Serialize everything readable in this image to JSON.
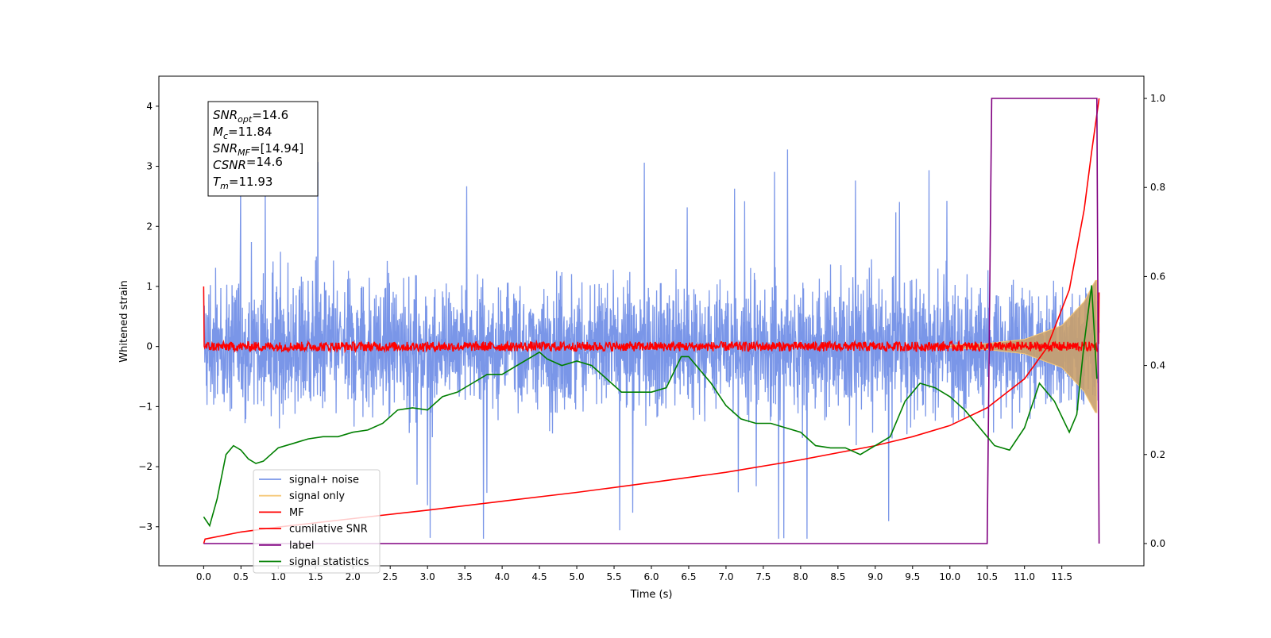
{
  "chart_data": {
    "type": "line",
    "xlabel": "Time (s)",
    "ylabel": "Whitened strain",
    "xlim": [
      -0.6,
      12.6
    ],
    "ylim": [
      -3.65,
      4.5
    ],
    "y2lim": [
      -0.05,
      1.05
    ],
    "x_ticks": [
      "0.0",
      "0.5",
      "1.0",
      "1.5",
      "2.0",
      "2.5",
      "3.0",
      "3.5",
      "4.0",
      "4.5",
      "5.0",
      "5.5",
      "6.0",
      "6.5",
      "7.0",
      "7.5",
      "8.0",
      "8.5",
      "9.0",
      "9.5",
      "10.0",
      "10.5",
      "11.0",
      "11.5"
    ],
    "y_ticks": [
      "−3",
      "−2",
      "−1",
      "0",
      "1",
      "2",
      "3",
      "4"
    ],
    "y2_ticks": [
      "0.0",
      "0.2",
      "0.4",
      "0.6",
      "0.8",
      "1.0"
    ],
    "annotation": [
      {
        "sym": "SNR",
        "sub": "opt",
        "val": "=14.6"
      },
      {
        "sym": "M",
        "sub": "c",
        "val": "=11.84"
      },
      {
        "sym": "SNR",
        "sub": "MF",
        "val": "=[14.94]"
      },
      {
        "sym": "CSNR",
        "sub": "",
        "val": "=14.6"
      },
      {
        "sym": "T",
        "sub": "m",
        "val": "=11.93"
      }
    ],
    "legend_position": "lower-left",
    "legend": [
      {
        "label": "signal+ noise",
        "color": "#7a96e8"
      },
      {
        "label": "signal only",
        "color": "#f6c97a"
      },
      {
        "label": "MF",
        "color": "#ff0000"
      },
      {
        "label": "cumilative SNR",
        "color": "#ff0000"
      },
      {
        "label": "label",
        "color": "#800080"
      },
      {
        "label": "signal statistics",
        "color": "#007f00"
      }
    ],
    "series": [
      {
        "name": "signal+ noise",
        "axis": "left",
        "color": "#7a96e8",
        "description_levels": {
          "x_start": 0.0,
          "x_end": 12.0,
          "typical_upper": 1.5,
          "typical_lower": -1.5,
          "max": 4.2,
          "min": -3.2
        }
      },
      {
        "name": "signal only",
        "axis": "left",
        "color": "#f6c97a",
        "envelope": {
          "x": [
            10.0,
            10.5,
            11.0,
            11.5,
            11.8,
            11.95
          ],
          "amp": [
            0.02,
            0.05,
            0.12,
            0.35,
            0.75,
            1.1
          ]
        }
      },
      {
        "name": "MF",
        "axis": "left",
        "color": "#ff0000",
        "x_start": 0.0,
        "x_end": 12.0,
        "start_value": 1.0,
        "typical_amp": 0.08,
        "end_value": 0.9
      },
      {
        "name": "cumilative SNR",
        "axis": "right",
        "color": "#ff0000",
        "x": [
          0.0,
          0.02,
          0.5,
          1.0,
          2.0,
          3.0,
          4.0,
          5.0,
          6.0,
          7.0,
          8.0,
          9.0,
          9.5,
          10.0,
          10.5,
          11.0,
          11.3,
          11.6,
          11.8,
          11.9,
          12.0
        ],
        "y": [
          0.0,
          0.01,
          0.026,
          0.037,
          0.056,
          0.075,
          0.095,
          0.115,
          0.137,
          0.16,
          0.188,
          0.22,
          0.24,
          0.265,
          0.305,
          0.37,
          0.44,
          0.57,
          0.75,
          0.88,
          1.0
        ]
      },
      {
        "name": "label",
        "axis": "right",
        "color": "#800080",
        "x": [
          0.0,
          10.5,
          10.56,
          11.97,
          12.0
        ],
        "y": [
          0.0,
          0.0,
          1.0,
          1.0,
          0.0
        ]
      },
      {
        "name": "signal statistics",
        "axis": "right",
        "color": "#007f00",
        "x": [
          0.0,
          0.08,
          0.18,
          0.3,
          0.4,
          0.5,
          0.6,
          0.7,
          0.8,
          0.9,
          1.0,
          1.2,
          1.4,
          1.6,
          1.8,
          2.0,
          2.2,
          2.4,
          2.6,
          2.8,
          3.0,
          3.2,
          3.4,
          3.6,
          3.8,
          4.0,
          4.2,
          4.4,
          4.5,
          4.6,
          4.8,
          5.0,
          5.2,
          5.4,
          5.6,
          5.8,
          6.0,
          6.2,
          6.4,
          6.5,
          6.6,
          6.8,
          7.0,
          7.2,
          7.4,
          7.6,
          7.8,
          8.0,
          8.2,
          8.4,
          8.6,
          8.8,
          9.0,
          9.2,
          9.4,
          9.6,
          9.8,
          10.0,
          10.2,
          10.4,
          10.6,
          10.8,
          11.0,
          11.2,
          11.4,
          11.6,
          11.7,
          11.8,
          11.9,
          11.97
        ],
        "y": [
          0.06,
          0.04,
          0.1,
          0.2,
          0.22,
          0.21,
          0.19,
          0.18,
          0.185,
          0.2,
          0.215,
          0.225,
          0.235,
          0.24,
          0.24,
          0.25,
          0.255,
          0.27,
          0.3,
          0.305,
          0.3,
          0.33,
          0.34,
          0.36,
          0.38,
          0.38,
          0.4,
          0.42,
          0.43,
          0.415,
          0.4,
          0.41,
          0.4,
          0.37,
          0.34,
          0.34,
          0.34,
          0.35,
          0.42,
          0.42,
          0.4,
          0.36,
          0.31,
          0.28,
          0.27,
          0.27,
          0.26,
          0.25,
          0.22,
          0.215,
          0.215,
          0.2,
          0.22,
          0.24,
          0.32,
          0.36,
          0.35,
          0.33,
          0.3,
          0.26,
          0.22,
          0.21,
          0.26,
          0.36,
          0.32,
          0.25,
          0.29,
          0.45,
          0.58,
          0.37
        ]
      }
    ]
  }
}
